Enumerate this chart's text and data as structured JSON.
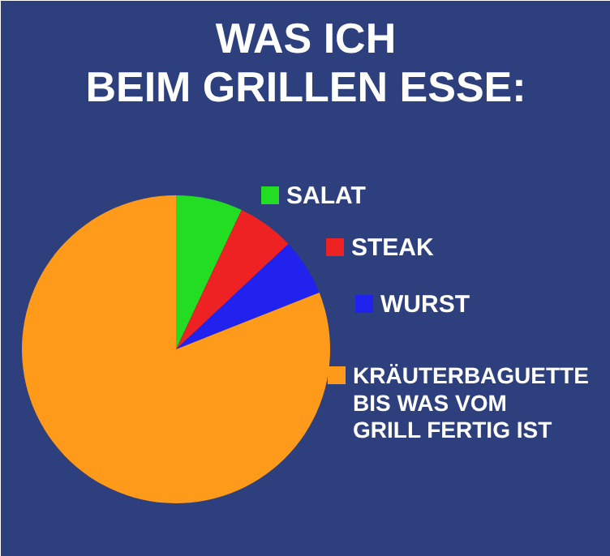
{
  "chart_data": {
    "type": "pie",
    "title": "WAS ICH\nBEIM GRILLEN ESSE:",
    "categories": [
      "SALAT",
      "STEAK",
      "WURST",
      "KRÄUTERBAGUETTE\nBIS WAS VOM\nGRILL FERTIG IST"
    ],
    "values": [
      7,
      6,
      6,
      81
    ],
    "colors": [
      "#22dd22",
      "#ee2222",
      "#2222ee",
      "#ff9a1a"
    ],
    "legend": "right"
  }
}
